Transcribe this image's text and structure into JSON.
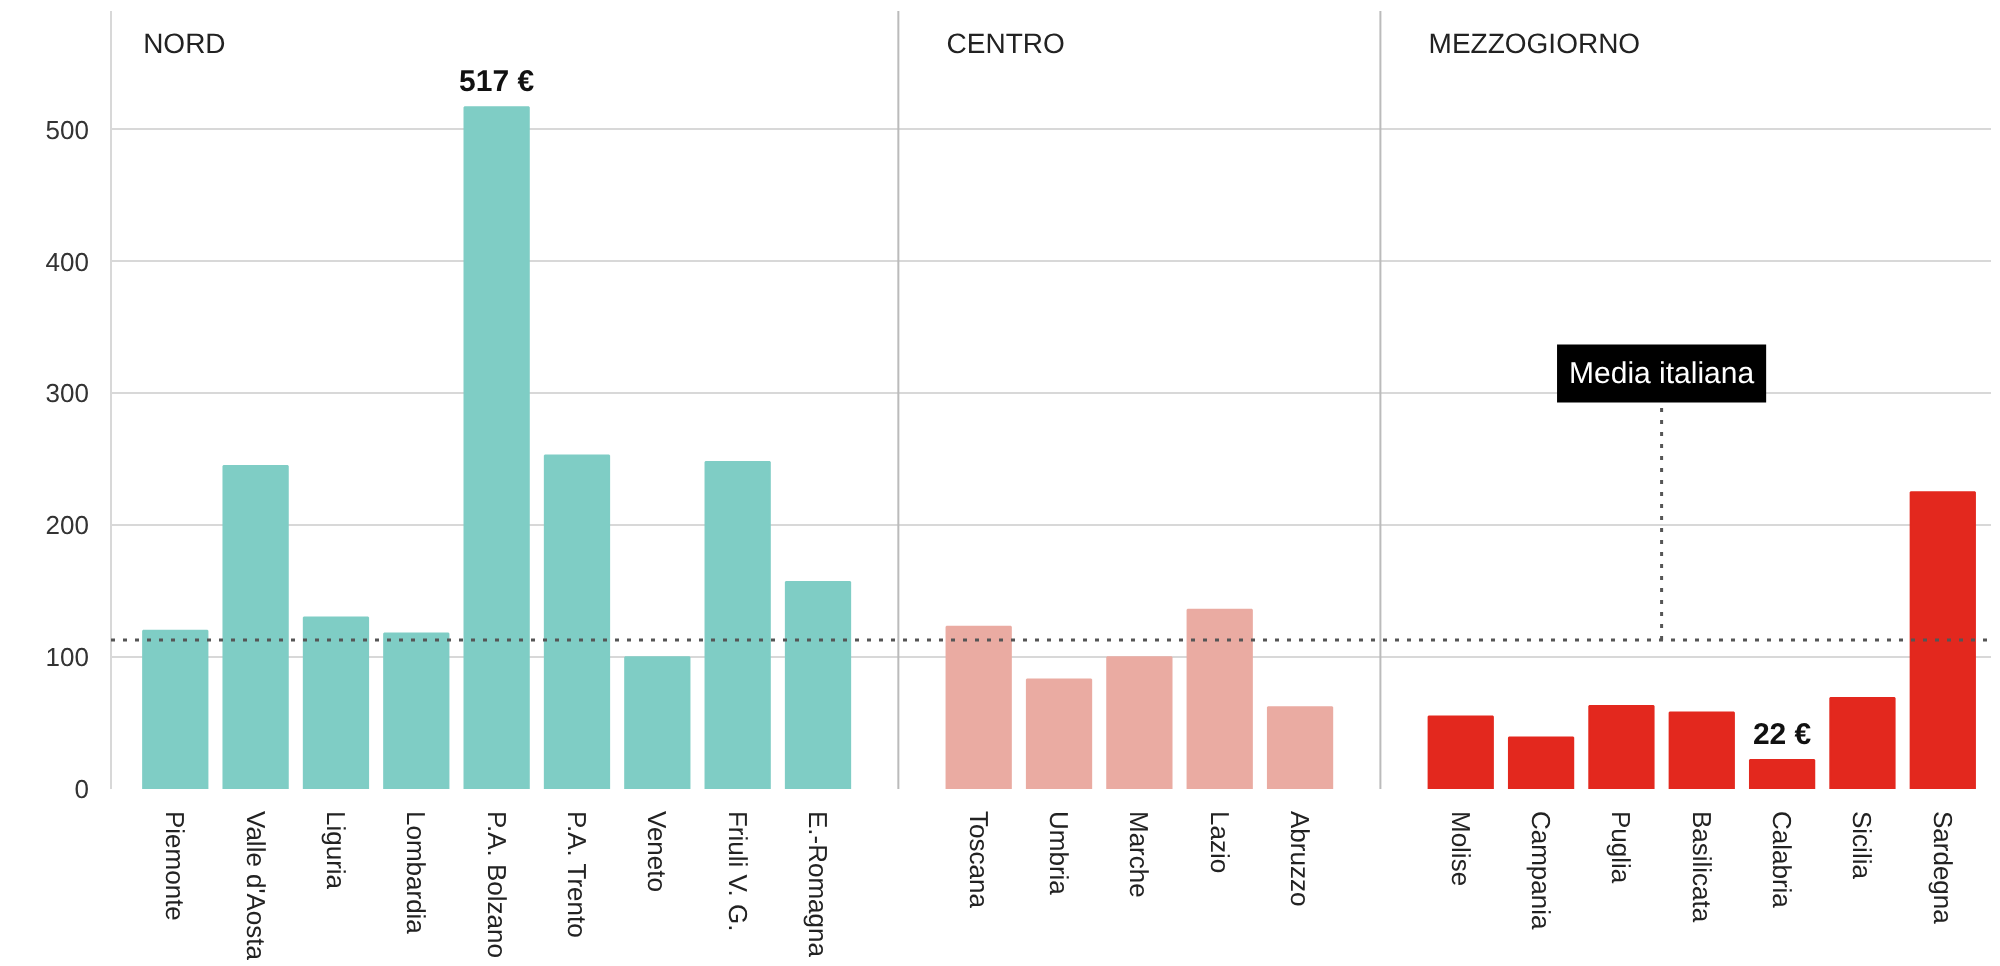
{
  "chart_data": {
    "type": "bar",
    "categories": [
      "Piemonte",
      "Valle d'Aosta",
      "Liguria",
      "Lombardia",
      "P.A. Bolzano",
      "P.A. Trento",
      "Veneto",
      "Friuli V. G.",
      "E.-Romagna",
      "Toscana",
      "Umbria",
      "Marche",
      "Lazio",
      "Abruzzo",
      "Molise",
      "Campania",
      "Puglia",
      "Basilicata",
      "Calabria",
      "Sicilia",
      "Sardegna"
    ],
    "values": [
      120,
      245,
      130,
      118,
      517,
      253,
      100,
      248,
      157,
      123,
      83,
      100,
      136,
      62,
      55,
      39,
      63,
      58,
      22,
      69,
      225
    ],
    "colors": [
      "#7fcdc5",
      "#7fcdc5",
      "#7fcdc5",
      "#7fcdc5",
      "#7fcdc5",
      "#7fcdc5",
      "#7fcdc5",
      "#7fcdc5",
      "#7fcdc5",
      "#eaaba2",
      "#eaaba2",
      "#eaaba2",
      "#eaaba2",
      "#eaaba2",
      "#e3281e",
      "#e3281e",
      "#e3281e",
      "#e3281e",
      "#e3281e",
      "#e3281e",
      "#e3281e"
    ],
    "value_labels": [
      null,
      null,
      null,
      null,
      "517 €",
      null,
      null,
      null,
      null,
      null,
      null,
      null,
      null,
      null,
      null,
      null,
      null,
      null,
      "22 €",
      null,
      null
    ],
    "annotations": [
      "NORD",
      "CENTRO",
      "MEZZOGIORNO"
    ],
    "ref_lines": [
      {
        "axis": "y",
        "value": 113,
        "label": "Media italiana",
        "color": "#555555",
        "line_style": "dotted"
      }
    ],
    "ylim": [
      0,
      590
    ],
    "yticks": [
      0,
      100,
      200,
      300,
      400,
      500
    ],
    "grid": "y"
  }
}
